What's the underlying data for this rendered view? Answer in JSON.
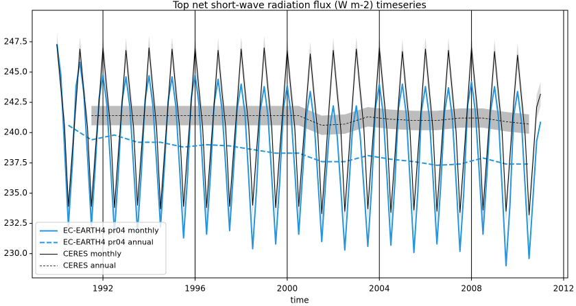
{
  "chart_data": {
    "type": "line",
    "title": "Top net short-wave radiation flux (W m-2) timeseries",
    "xlabel": "time",
    "xlim": [
      1988.93,
      2012.18
    ],
    "xticks": [
      1992,
      1996,
      2000,
      2004,
      2008,
      2012
    ],
    "ylim": [
      228.0,
      250.1
    ],
    "yticks": [
      {
        "value": 230,
        "label": "230.0"
      },
      232.5,
      {
        "value": 235,
        "label": "235.0"
      },
      237.5,
      {
        "value": 240,
        "label": "240.0"
      },
      242.5,
      {
        "value": 245,
        "label": "245.0"
      },
      247.5
    ],
    "xgrid": true,
    "legend": "lower left",
    "x": [
      1990,
      1990.17,
      1990.33,
      1990.5,
      1990.67,
      1990.83,
      1991,
      1991.17,
      1991.33,
      1991.5,
      1991.67,
      1991.83,
      1992,
      1992.17,
      1992.33,
      1992.5,
      1992.67,
      1992.83,
      1993,
      1993.17,
      1993.33,
      1993.5,
      1993.67,
      1993.83,
      1994,
      1994.17,
      1994.33,
      1994.5,
      1994.67,
      1994.83,
      1995,
      1995.17,
      1995.33,
      1995.5,
      1995.67,
      1995.83,
      1996,
      1996.17,
      1996.33,
      1996.5,
      1996.67,
      1996.83,
      1997,
      1997.17,
      1997.33,
      1997.5,
      1997.67,
      1997.83,
      1998,
      1998.17,
      1998.33,
      1998.5,
      1998.67,
      1998.83,
      1999,
      1999.17,
      1999.33,
      1999.5,
      1999.67,
      1999.83,
      2000,
      2000.17,
      2000.33,
      2000.5,
      2000.67,
      2000.83,
      2001,
      2001.17,
      2001.33,
      2001.5,
      2001.67,
      2001.83,
      2002,
      2002.17,
      2002.33,
      2002.5,
      2002.67,
      2002.83,
      2003,
      2003.17,
      2003.33,
      2003.5,
      2003.67,
      2003.83,
      2004,
      2004.17,
      2004.33,
      2004.5,
      2004.67,
      2004.83,
      2005,
      2005.17,
      2005.33,
      2005.5,
      2005.67,
      2005.83,
      2006,
      2006.17,
      2006.33,
      2006.5,
      2006.67,
      2006.83,
      2007,
      2007.17,
      2007.33,
      2007.5,
      2007.67,
      2007.83,
      2008,
      2008.17,
      2008.33,
      2008.5,
      2008.67,
      2008.83,
      2009,
      2009.17,
      2009.33,
      2009.5,
      2009.67,
      2009.83,
      2010,
      2010.17,
      2010.33,
      2010.5,
      2010.67,
      2010.83,
      2011
    ],
    "series": [
      {
        "name": "EC-EARTH4 pr04 monthly",
        "color": "#2596de",
        "linestyle": "solid",
        "width": 2,
        "values": [
          247.3,
          244.8,
          238.8,
          232.3,
          237.3,
          243.8,
          245.8,
          243.3,
          238.1,
          232.3,
          237.3,
          242.8,
          244.8,
          242.3,
          237.3,
          231.7,
          236.7,
          242.6,
          244.6,
          242.1,
          237.2,
          231.8,
          236.8,
          242.7,
          244.7,
          242.2,
          237.5,
          232.2,
          237.2,
          242.6,
          244.6,
          242.1,
          237.0,
          231.3,
          236.3,
          242.8,
          244.8,
          242.3,
          237.2,
          231.6,
          236.6,
          242.4,
          244.4,
          241.9,
          237.2,
          231.9,
          236.9,
          242.0,
          244.0,
          241.5,
          236.2,
          230.4,
          235.4,
          241.8,
          243.8,
          241.3,
          236.3,
          230.8,
          235.8,
          241.9,
          243.9,
          241.4,
          236.8,
          231.6,
          236.6,
          241.4,
          243.4,
          240.9,
          236.2,
          231.0,
          236.0,
          240.2,
          242.2,
          239.7,
          235.3,
          230.3,
          235.3,
          240.2,
          242.2,
          239.7,
          235.4,
          230.6,
          235.6,
          242.0,
          244.0,
          241.5,
          236.4,
          230.7,
          235.7,
          242.0,
          244.0,
          241.5,
          236.1,
          230.1,
          235.1,
          241.8,
          243.8,
          241.3,
          236.3,
          230.8,
          235.8,
          241.7,
          243.7,
          241.2,
          236.0,
          230.2,
          235.2,
          242.2,
          244.2,
          241.7,
          236.9,
          231.6,
          236.6,
          241.8,
          243.8,
          241.3,
          235.4,
          229.0,
          234.0,
          241.4,
          243.4,
          240.9,
          235.5,
          229.6,
          234.6,
          239.3,
          240.9
        ]
      },
      {
        "name": "EC-EARTH4 pr04 annual",
        "color": "#2596de",
        "linestyle": "dashed",
        "width": 2,
        "x": [
          1990.5,
          1991.5,
          1992.5,
          1993.5,
          1994.5,
          1995.5,
          1996.5,
          1997.5,
          1998.5,
          1999.5,
          2000.5,
          2001.5,
          2002.5,
          2003.5,
          2004.5,
          2005.5,
          2006.5,
          2007.5,
          2008.5,
          2009.5,
          2010.5
        ],
        "values": [
          240.6,
          239.4,
          239.8,
          239.2,
          239.2,
          238.8,
          239.0,
          238.9,
          238.6,
          238.3,
          238.3,
          237.6,
          237.6,
          238.1,
          237.8,
          237.6,
          237.3,
          237.4,
          237.9,
          237.4,
          237.4
        ]
      },
      {
        "name": "CERES monthly",
        "color": "#000000",
        "linestyle": "solid",
        "width": 1,
        "error": 1.0,
        "band_color": "#d9d9d9",
        "values": [
          247.3,
          243.8,
          240.6,
          233.9,
          238.4,
          242.4,
          246.9,
          243.4,
          240.4,
          233.9,
          238.4,
          242.4,
          247.0,
          243.5,
          240.4,
          233.8,
          238.3,
          242.4,
          246.8,
          243.3,
          240.4,
          234.0,
          238.5,
          242.4,
          247.0,
          243.5,
          240.4,
          233.7,
          238.2,
          242.4,
          246.9,
          243.4,
          240.4,
          233.9,
          238.4,
          242.4,
          247.0,
          243.5,
          240.4,
          233.8,
          238.3,
          242.4,
          246.8,
          243.3,
          240.4,
          233.9,
          238.4,
          242.4,
          246.9,
          243.4,
          240.5,
          234.0,
          238.5,
          242.4,
          247.0,
          243.5,
          240.4,
          233.8,
          238.3,
          242.4,
          246.8,
          243.3,
          240.4,
          233.9,
          238.4,
          242.4,
          246.5,
          243.0,
          239.9,
          233.3,
          237.8,
          242.4,
          246.8,
          243.3,
          240.2,
          233.5,
          238.0,
          242.4,
          246.9,
          243.4,
          240.3,
          233.7,
          238.2,
          242.4,
          247.0,
          243.5,
          240.2,
          233.4,
          237.9,
          242.4,
          246.7,
          243.2,
          240.2,
          233.6,
          238.1,
          242.4,
          246.9,
          243.4,
          240.2,
          233.5,
          238.0,
          242.4,
          246.8,
          243.3,
          240.1,
          233.4,
          237.9,
          242.4,
          247.0,
          243.5,
          240.3,
          233.6,
          238.1,
          242.4,
          246.7,
          243.2,
          240.1,
          233.5,
          238.0,
          242.4,
          246.4,
          242.9,
          239.8,
          233.2,
          237.7,
          242.1,
          243.2
        ]
      },
      {
        "name": "CERES annual",
        "color": "#000000",
        "linestyle": "dashed",
        "width": 0.8,
        "error": 0.8,
        "band_color": "#bdbdbd",
        "x": [
          1991.5,
          1992.5,
          1993.5,
          1994.5,
          1995.5,
          1996.5,
          1997.5,
          1998.5,
          1999.5,
          2000.5,
          2001.5,
          2002.5,
          2003.5,
          2004.5,
          2005.5,
          2006.5,
          2007.5,
          2008.5,
          2009.5,
          2010.5
        ],
        "values": [
          241.4,
          241.4,
          241.4,
          241.4,
          241.4,
          241.4,
          241.4,
          241.4,
          241.4,
          241.4,
          240.6,
          240.7,
          241.3,
          241.1,
          241.0,
          241.0,
          241.2,
          241.2,
          240.9,
          240.7
        ]
      }
    ]
  }
}
